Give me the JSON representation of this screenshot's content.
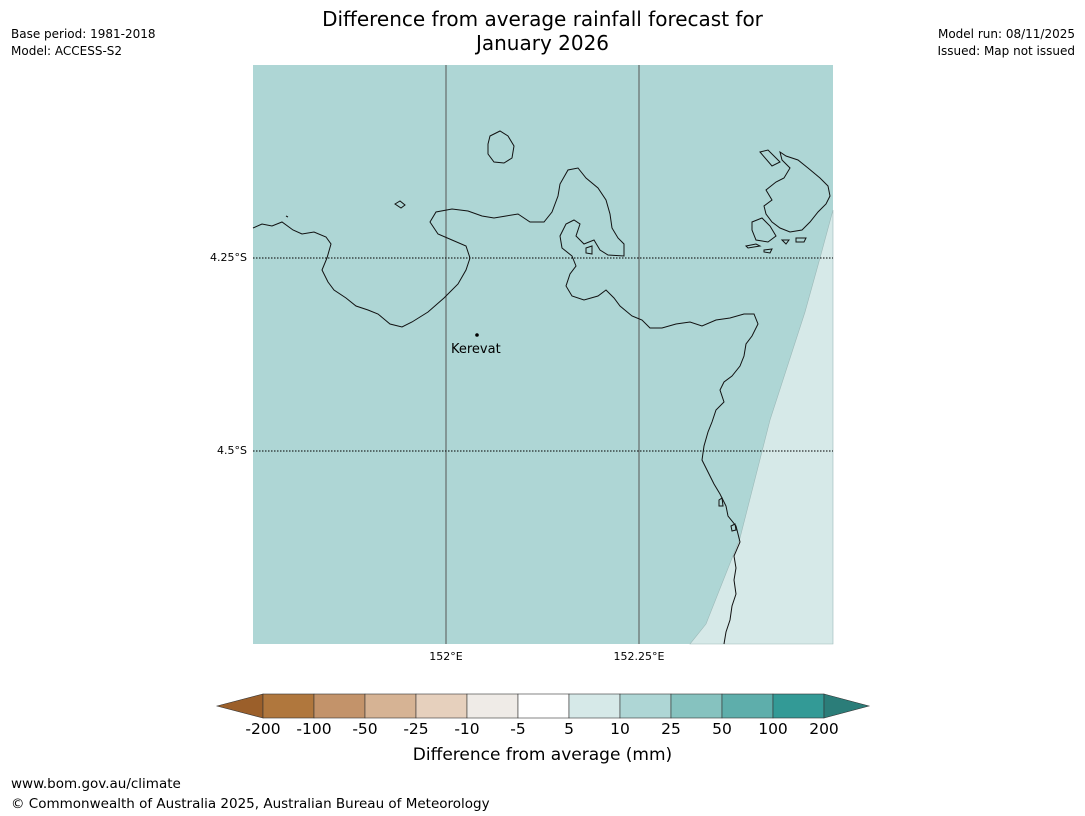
{
  "header": {
    "title_line1": "Difference from average rainfall forecast for",
    "title_line2": "January 2026",
    "base_period": "Base period: 1981-2018",
    "model": "Model: ACCESS-S2",
    "model_run": "Model run: 08/11/2025",
    "issued": "Issued: Map not issued"
  },
  "map": {
    "lat_labels": [
      "4.25°S",
      "4.5°S"
    ],
    "lon_labels": [
      "152°E",
      "152.25°E"
    ],
    "place": {
      "name": "Kerevat"
    },
    "fill_main_color": "#aed6d5",
    "fill_light_color": "#d6e9e8"
  },
  "colorbar": {
    "title": "Difference from average (mm)",
    "ticks": [
      "-200",
      "-100",
      "-50",
      "-25",
      "-10",
      "-5",
      "5",
      "10",
      "25",
      "50",
      "100",
      "200"
    ],
    "colors": [
      "#9b5f2a",
      "#b0773d",
      "#c3936a",
      "#d6b394",
      "#e6d0bd",
      "#efebe7",
      "#ffffff",
      "#d6e9e8",
      "#aed6d5",
      "#86c2bf",
      "#5eaeab",
      "#339a96",
      "#2b7d79"
    ]
  },
  "footer": {
    "url": "www.bom.gov.au/climate",
    "copyright": "© Commonwealth of Australia 2025, Australian Bureau of Meteorology"
  }
}
